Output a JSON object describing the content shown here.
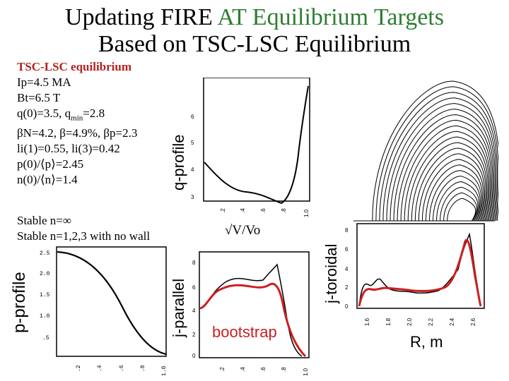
{
  "title": {
    "line1_part1": "Updating FIRE ",
    "line1_part2": "AT Equilibrium Targets",
    "line2": "Based on TSC-LSC Equilibrium"
  },
  "params": {
    "heading": "TSC-LSC equilibrium",
    "ip": "Ip=4.5 MA",
    "bt": "Bt=6.5 T",
    "q": "q(0)=3.5, q",
    "q_sub": "min",
    "q_val": "=2.8",
    "beta": "βN=4.2, β=4.9%, βp=2.3",
    "li": "li(1)=0.55, li(3)=0.42",
    "p0": "p(0)/⟨p⟩=2.45",
    "n0": "n(0)/⟨n⟩=1.4"
  },
  "stability": {
    "line1": "Stable n=∞",
    "line2": "Stable n=1,2,3 with no wall"
  },
  "labels": {
    "q_profile": "q-profile",
    "p_profile": "p-profile",
    "j_parallel": "j-parallel",
    "j_toroidal": "j-toroidal",
    "sqrt_v": "√V/Vo",
    "bootstrap": "bootstrap",
    "r_m": "R, m"
  },
  "ticks": {
    "q_y": [
      "6",
      "5",
      "4",
      "3"
    ],
    "x01": [
      ".2",
      ".4",
      ".6",
      ".8",
      "1.0"
    ],
    "p_y": [
      "2.5",
      "2.0",
      "1.5",
      "1.0",
      ".5"
    ],
    "p_x": [
      ".2",
      ".4",
      ".6",
      ".8",
      "1.0"
    ],
    "jpar_y": [
      "8",
      "6",
      "4",
      "2",
      "0"
    ],
    "jtor_y": [
      "8",
      "6",
      "4",
      "2",
      "0"
    ],
    "jtor_x": [
      "1.6",
      "1.8",
      "2.0",
      "2.2",
      "2.4",
      "2.6"
    ]
  },
  "colors": {
    "accent_green": "#2e7d32",
    "red": "#b22222",
    "curve_red": "#cc1f1f"
  }
}
